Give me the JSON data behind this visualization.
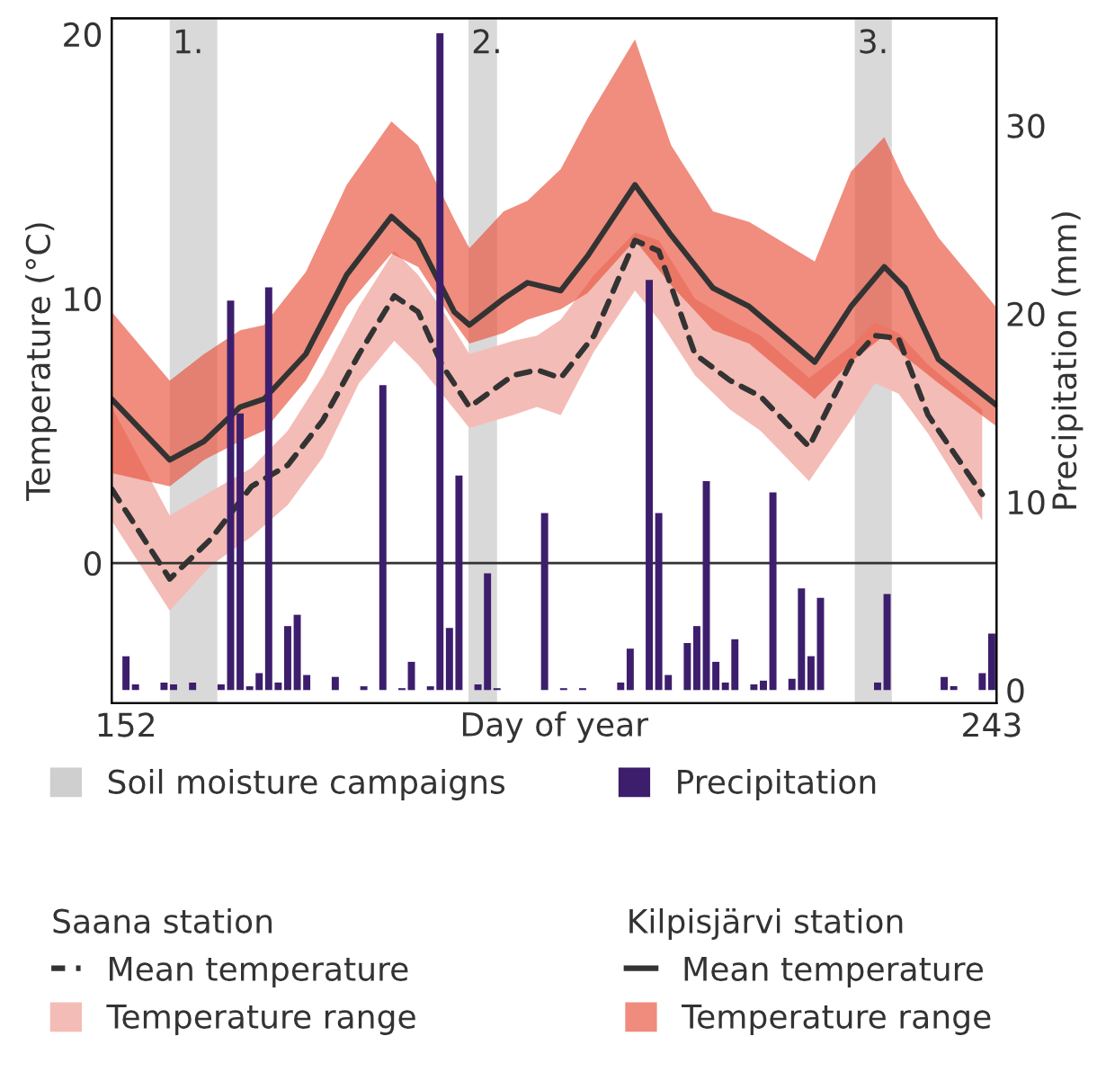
{
  "chart_data": {
    "type": "line",
    "xlabel": "Day of year",
    "ylabel": "Temperature (°C)",
    "y2label": "Precipitation (mm)",
    "xlim": [
      150.5,
      243.5
    ],
    "xticks": [
      152,
      243
    ],
    "ylim": [
      -5.3,
      20.6
    ],
    "yticks": [
      0,
      10,
      20
    ],
    "y2lim": [
      -0.7,
      35.7
    ],
    "y2ticks": [
      0,
      10,
      20,
      30
    ],
    "legend": "bottom",
    "grid": false,
    "ref_lines": [
      {
        "axis": "y",
        "value": 0,
        "color": "#333333"
      }
    ],
    "bands": [
      {
        "axis": "x",
        "from": 156.6,
        "to": 161.6,
        "label": "1.",
        "color": "#cfcfcf"
      },
      {
        "axis": "x",
        "from": 188.0,
        "to": 191.0,
        "label": "2.",
        "color": "#cfcfcf"
      },
      {
        "axis": "x",
        "from": 228.6,
        "to": 232.5,
        "label": "3.",
        "color": "#cfcfcf"
      }
    ],
    "annotations": [
      "Soil moisture campaigns",
      "Saana station",
      "Kilpisjärvi station",
      "Temperature range",
      "Temperature range"
    ],
    "series": [
      {
        "name": "Precipitation",
        "type": "bar",
        "axis": "y2",
        "color": "#3d1e6d",
        "x": [
          152,
          153,
          156,
          157,
          159,
          162,
          163,
          164,
          165,
          166,
          167,
          168,
          169,
          170,
          171,
          174,
          177,
          179,
          181,
          182,
          184,
          185,
          186,
          187,
          189,
          190,
          191,
          196,
          198,
          200,
          204,
          205,
          207,
          208,
          209,
          211,
          212,
          213,
          214,
          215,
          216,
          218,
          219,
          220,
          222,
          223,
          224,
          225,
          231,
          232,
          238,
          239,
          242,
          243
        ],
        "values": [
          1.8,
          0.3,
          0.4,
          0.3,
          0.4,
          0.3,
          20.7,
          14.7,
          0.2,
          0.9,
          21.4,
          0.4,
          3.4,
          4.0,
          0.8,
          0.7,
          0.2,
          16.2,
          0.1,
          1.5,
          0.2,
          34.9,
          3.3,
          11.4,
          0.3,
          6.2,
          0.1,
          9.4,
          0.1,
          0.1,
          0.4,
          2.2,
          21.8,
          9.4,
          0.8,
          2.5,
          3.4,
          11.1,
          1.5,
          0.4,
          2.7,
          0.3,
          0.5,
          10.5,
          0.6,
          5.4,
          1.8,
          4.9,
          0.4,
          5.1,
          0.7,
          0.2,
          0.9,
          3.0
        ]
      },
      {
        "name": "Mean temperature",
        "line_style": "dashed",
        "color": "#333333",
        "x": [
          150.5,
          156.6,
          160.9,
          165.2,
          169.0,
          172.7,
          176.5,
          180.2,
          182.7,
          185.2,
          188.1,
          192.7,
          195.2,
          197.7,
          201.2,
          205.5,
          208.0,
          211.8,
          215.5,
          218.7,
          223.8,
          228.2,
          230.7,
          233.2,
          236.3,
          242.0
        ],
        "values": [
          2.8,
          -0.6,
          0.9,
          2.9,
          3.7,
          5.4,
          7.9,
          10.1,
          9.5,
          7.5,
          5.9,
          7.1,
          7.3,
          7.0,
          8.6,
          12.2,
          11.8,
          7.9,
          6.9,
          6.3,
          4.4,
          7.6,
          8.6,
          8.5,
          5.6,
          2.6
        ],
        "upper": [
          5.9,
          1.8,
          2.7,
          3.6,
          5.0,
          7.1,
          9.7,
          11.8,
          10.9,
          9.6,
          7.9,
          8.4,
          8.6,
          9.2,
          10.9,
          12.5,
          12.2,
          10.0,
          9.2,
          8.6,
          7.0,
          8.2,
          9.1,
          8.7,
          7.5,
          5.8
        ],
        "lower": [
          1.6,
          -1.8,
          -0.1,
          1.0,
          2.2,
          4.0,
          6.8,
          8.4,
          7.5,
          6.4,
          5.1,
          5.6,
          5.9,
          5.6,
          8.0,
          10.3,
          9.2,
          7.1,
          5.8,
          5.0,
          3.1,
          5.4,
          6.8,
          6.4,
          4.9,
          1.6
        ]
      },
      {
        "name": "Mean temperature",
        "line_style": "solid",
        "color": "#333333",
        "x": [
          150.5,
          156.6,
          160.2,
          164.0,
          166.5,
          170.9,
          175.2,
          179.9,
          182.7,
          186.5,
          188.1,
          191.7,
          194.2,
          197.7,
          200.5,
          205.5,
          209.3,
          213.7,
          217.5,
          224.4,
          228.2,
          231.7,
          233.9,
          237.4,
          243.4
        ],
        "values": [
          6.2,
          3.9,
          4.6,
          5.9,
          6.2,
          7.9,
          10.9,
          13.1,
          12.2,
          9.5,
          9.0,
          10.0,
          10.6,
          10.3,
          11.6,
          14.3,
          12.4,
          10.4,
          9.7,
          7.6,
          9.7,
          11.2,
          10.4,
          7.7,
          6.0
        ],
        "upper": [
          9.5,
          6.9,
          7.9,
          8.8,
          9.0,
          11.0,
          14.3,
          16.7,
          15.8,
          13.0,
          11.9,
          13.3,
          13.7,
          14.9,
          16.8,
          19.8,
          15.8,
          13.3,
          12.9,
          11.4,
          14.8,
          16.1,
          14.4,
          12.3,
          9.7
        ],
        "lower": [
          3.4,
          2.9,
          3.9,
          4.6,
          5.0,
          6.9,
          9.7,
          11.7,
          11.2,
          9.1,
          8.3,
          8.7,
          9.2,
          9.6,
          10.2,
          12.2,
          10.5,
          8.8,
          8.3,
          6.2,
          7.6,
          8.6,
          7.8,
          6.8,
          5.2
        ]
      }
    ]
  }
}
